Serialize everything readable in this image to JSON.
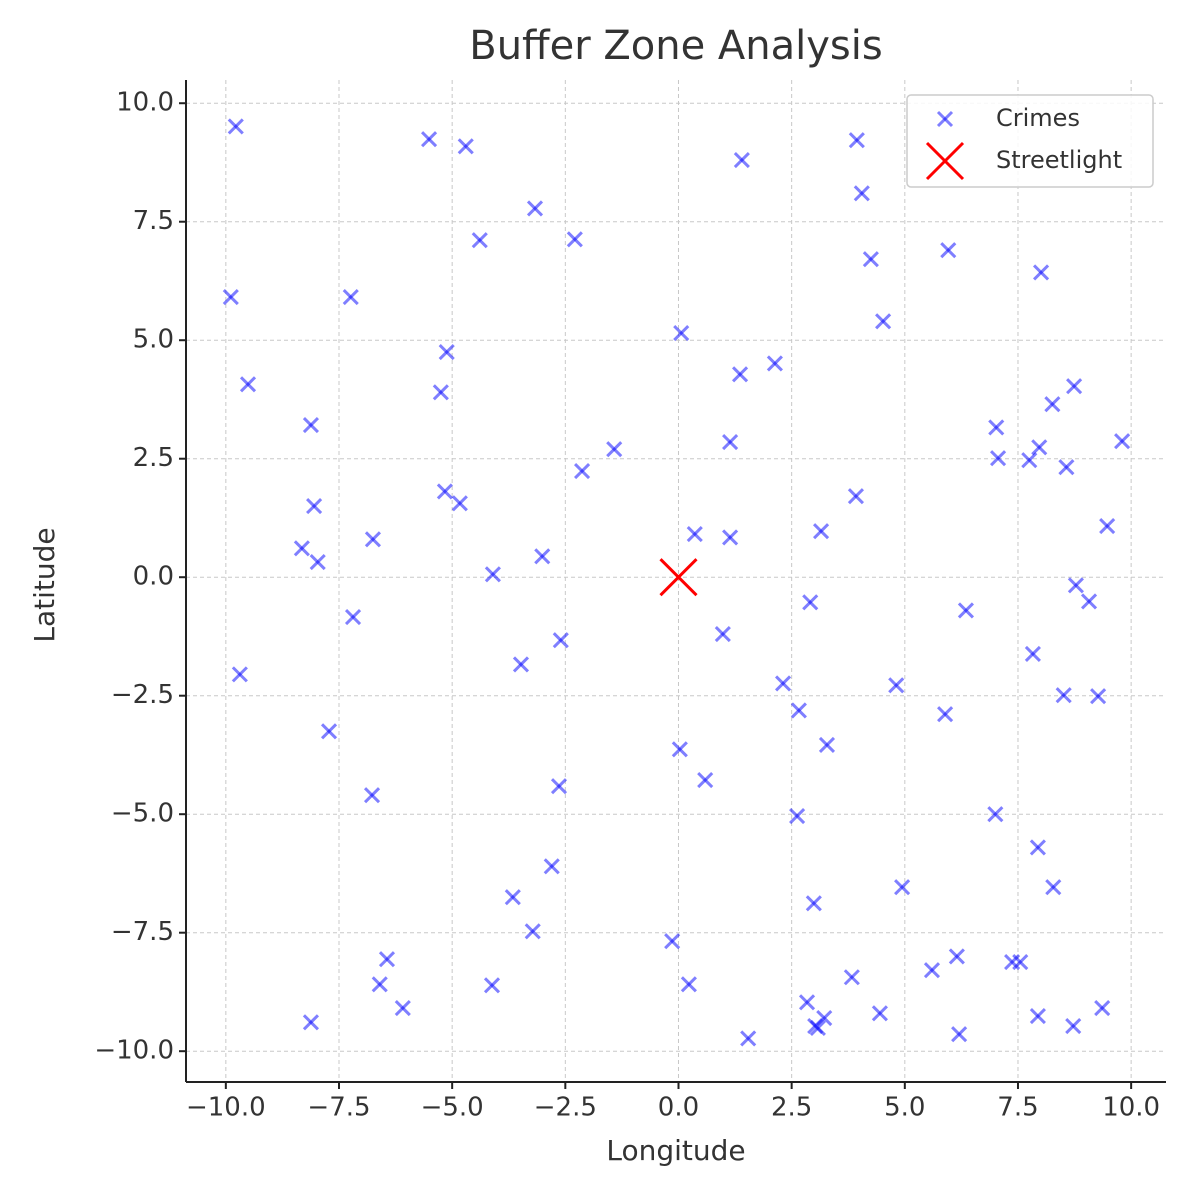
{
  "chart_data": {
    "type": "scatter",
    "title": "Buffer Zone Analysis",
    "x_label": "Longitude",
    "y_label": "Latitude",
    "xlim": [
      -10.88,
      10.77
    ],
    "ylim": [
      -10.65,
      10.49
    ],
    "xticks": [
      {
        "value": -10,
        "label": "−10.0"
      },
      {
        "value": -7.5,
        "label": "−7.5"
      },
      {
        "value": -5,
        "label": "−5.0"
      },
      {
        "value": -2.5,
        "label": "−2.5"
      },
      {
        "value": 0,
        "label": "0.0"
      },
      {
        "value": 2.5,
        "label": "2.5"
      },
      {
        "value": 5,
        "label": "5.0"
      },
      {
        "value": 7.5,
        "label": "7.5"
      },
      {
        "value": 10,
        "label": "10.0"
      }
    ],
    "yticks": [
      {
        "value": -10,
        "label": "−10.0"
      },
      {
        "value": -7.5,
        "label": "−7.5"
      },
      {
        "value": -5,
        "label": "−5.0"
      },
      {
        "value": -2.5,
        "label": "−2.5"
      },
      {
        "value": 0,
        "label": "0.0"
      },
      {
        "value": 2.5,
        "label": "2.5"
      },
      {
        "value": 5,
        "label": "5.0"
      },
      {
        "value": 7.5,
        "label": "7.5"
      },
      {
        "value": 10,
        "label": "10.0"
      }
    ],
    "grid": true,
    "legend": "upper right",
    "series": [
      {
        "name": "Crimes",
        "color": "#0000ff",
        "opacity": 0.5,
        "x": [
          -9.78,
          -5.51,
          -4.7,
          -3.17,
          -4.39,
          -2.29,
          -9.89,
          -7.24,
          -9.51,
          -5.12,
          -5.25,
          -8.12,
          -1.42,
          -2.13,
          -5.16,
          -4.83,
          -8.05,
          -8.32,
          -7.97,
          -6.75,
          -3.01,
          -4.1,
          -7.19,
          -2.6,
          -3.48,
          -9.69,
          -7.72,
          -6.77,
          -2.64,
          -2.8,
          -3.66,
          -3.22,
          -6.44,
          -6.6,
          -6.09,
          -4.12,
          -8.12,
          1.4,
          3.94,
          4.05,
          5.96,
          4.25,
          8.01,
          4.52,
          0.06,
          2.13,
          1.36,
          8.74,
          8.26,
          1.14,
          7.02,
          7.06,
          7.75,
          7.97,
          8.57,
          9.8,
          3.92,
          9.47,
          3.15,
          0.36,
          1.14,
          2.91,
          6.35,
          8.78,
          9.07,
          0.98,
          7.83,
          2.31,
          4.81,
          8.51,
          9.27,
          5.89,
          2.66,
          3.28,
          0.03,
          0.59,
          2.62,
          7.0,
          7.94,
          4.94,
          8.28,
          2.99,
          -0.14,
          0.23,
          3.83,
          5.6,
          6.15,
          7.37,
          7.55,
          2.84,
          3.22,
          3.02,
          3.08,
          4.45,
          1.54,
          6.2,
          7.94,
          8.72,
          9.36
        ],
        "values": [
          9.51,
          9.24,
          9.09,
          7.78,
          7.11,
          7.13,
          5.91,
          5.91,
          4.07,
          4.75,
          3.9,
          3.21,
          2.7,
          2.24,
          1.81,
          1.56,
          1.5,
          0.61,
          0.32,
          0.8,
          0.44,
          0.06,
          -0.84,
          -1.33,
          -1.84,
          -2.05,
          -3.25,
          -4.6,
          -4.41,
          -6.1,
          -6.75,
          -7.47,
          -8.06,
          -8.59,
          -9.09,
          -8.61,
          -9.39,
          8.8,
          9.22,
          8.1,
          6.9,
          6.71,
          6.43,
          5.4,
          5.15,
          4.51,
          4.28,
          4.03,
          3.65,
          2.85,
          3.16,
          2.51,
          2.47,
          2.74,
          2.32,
          2.87,
          1.71,
          1.08,
          0.97,
          0.91,
          0.84,
          -0.53,
          -0.7,
          -0.17,
          -0.51,
          -1.2,
          -1.62,
          -2.24,
          -2.28,
          -2.49,
          -2.51,
          -2.89,
          -2.81,
          -3.54,
          -3.63,
          -4.28,
          -5.04,
          -5.0,
          -5.7,
          -6.54,
          -6.54,
          -6.88,
          -7.68,
          -8.59,
          -8.44,
          -8.29,
          -8.0,
          -8.12,
          -8.12,
          -8.97,
          -9.3,
          -9.47,
          -9.51,
          -9.2,
          -9.73,
          -9.64,
          -9.26,
          -9.47,
          -9.09
        ]
      },
      {
        "name": "Streetlight",
        "color": "#ff0000",
        "opacity": 1,
        "x": [
          0
        ],
        "values": [
          0
        ]
      }
    ]
  }
}
